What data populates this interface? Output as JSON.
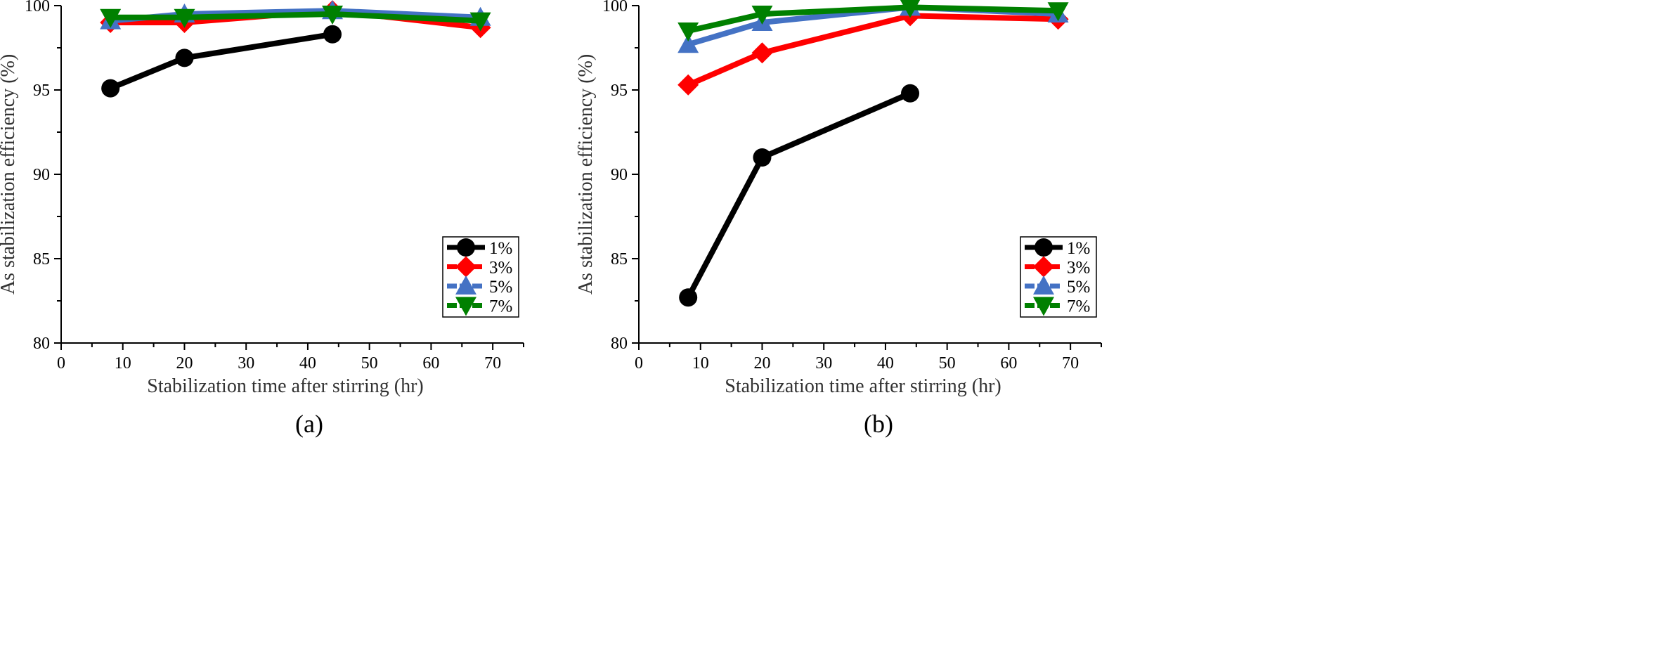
{
  "chart_data": [
    {
      "type": "line",
      "panel_label": "(a)",
      "xlabel": "Stabilization time after stirring (hr)",
      "ylabel": "As stabilization efficiency (%)",
      "xlim": [
        0,
        75
      ],
      "ylim": [
        80,
        100
      ],
      "xticks": [
        0,
        10,
        20,
        30,
        40,
        50,
        60,
        70
      ],
      "yticks": [
        80,
        85,
        90,
        95,
        100
      ],
      "grid": false,
      "legend_placement": "lower-right",
      "series": [
        {
          "name": "1%",
          "color": "#000000",
          "marker": "circle",
          "x": [
            8,
            20,
            44
          ],
          "y": [
            95.1,
            96.9,
            98.3
          ]
        },
        {
          "name": "3%",
          "color": "#ff0000",
          "marker": "diamond",
          "x": [
            8,
            20,
            44,
            68
          ],
          "y": [
            99.0,
            99.0,
            99.7,
            98.7
          ]
        },
        {
          "name": "5%",
          "color": "#4472c4",
          "marker": "triangle-up",
          "x": [
            8,
            20,
            44,
            68
          ],
          "y": [
            99.1,
            99.5,
            99.7,
            99.3
          ]
        },
        {
          "name": "7%",
          "color": "#008000",
          "marker": "triangle-down",
          "x": [
            8,
            20,
            44,
            68
          ],
          "y": [
            99.3,
            99.3,
            99.5,
            99.1
          ]
        }
      ]
    },
    {
      "type": "line",
      "panel_label": "(b)",
      "xlabel": "Stabilization time after stirring (hr)",
      "ylabel": "As stabilization efficiency (%)",
      "xlim": [
        0,
        75
      ],
      "ylim": [
        80,
        100
      ],
      "xticks": [
        0,
        10,
        20,
        30,
        40,
        50,
        60,
        70
      ],
      "yticks": [
        80,
        85,
        90,
        95,
        100
      ],
      "grid": false,
      "legend_placement": "lower-right",
      "series": [
        {
          "name": "1%",
          "color": "#000000",
          "marker": "circle",
          "x": [
            8,
            20,
            44
          ],
          "y": [
            82.7,
            91.0,
            94.8
          ]
        },
        {
          "name": "3%",
          "color": "#ff0000",
          "marker": "diamond",
          "x": [
            8,
            20,
            44,
            68
          ],
          "y": [
            95.3,
            97.2,
            99.4,
            99.2
          ]
        },
        {
          "name": "5%",
          "color": "#4472c4",
          "marker": "triangle-up",
          "x": [
            8,
            20,
            44,
            68
          ],
          "y": [
            97.7,
            99.0,
            99.9,
            99.5
          ]
        },
        {
          "name": "7%",
          "color": "#008000",
          "marker": "triangle-down",
          "x": [
            8,
            20,
            44,
            68
          ],
          "y": [
            98.5,
            99.5,
            99.9,
            99.7
          ]
        }
      ]
    }
  ]
}
